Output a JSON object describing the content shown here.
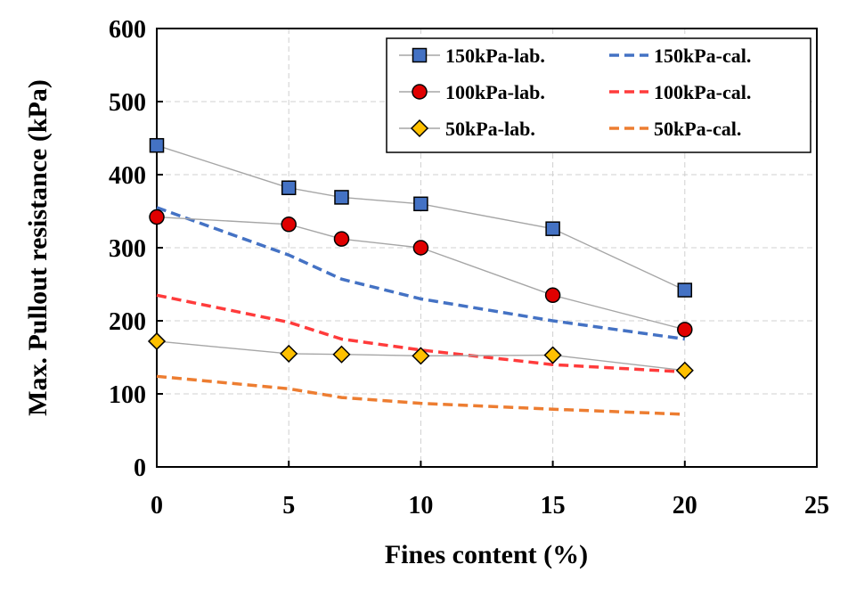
{
  "chart_data": {
    "type": "line",
    "title": "",
    "xlabel": "Fines content (%)",
    "ylabel": "Max. Pullout resistance (kPa)",
    "xlim": [
      0,
      25
    ],
    "ylim": [
      0,
      600
    ],
    "xticks": [
      0,
      5,
      10,
      15,
      20,
      25
    ],
    "yticks": [
      0,
      100,
      200,
      300,
      400,
      500,
      600
    ],
    "grid": true,
    "legend_position": "top-right",
    "series": [
      {
        "name": "150kPa-lab.",
        "kind": "lab",
        "marker": "square",
        "color": "#4472C4",
        "x": [
          0,
          5,
          7,
          10,
          15,
          20
        ],
        "values": [
          440,
          382,
          369,
          360,
          326,
          242
        ]
      },
      {
        "name": "100kPa-lab.",
        "kind": "lab",
        "marker": "circle",
        "color": "#E00000",
        "x": [
          0,
          5,
          7,
          10,
          15,
          20
        ],
        "values": [
          342,
          332,
          312,
          300,
          235,
          188
        ]
      },
      {
        "name": "50kPa-lab.",
        "kind": "lab",
        "marker": "diamond",
        "color": "#FFC000",
        "x": [
          0,
          5,
          7,
          10,
          15,
          20
        ],
        "values": [
          172,
          155,
          154,
          152,
          153,
          132
        ]
      },
      {
        "name": "150kPa-cal.",
        "kind": "cal",
        "color": "#4472C4",
        "x": [
          0,
          5,
          7,
          10,
          15,
          20
        ],
        "values": [
          355,
          290,
          257,
          230,
          200,
          175
        ]
      },
      {
        "name": "100kPa-cal.",
        "kind": "cal",
        "color": "#FF3B3B",
        "x": [
          0,
          5,
          7,
          10,
          15,
          20
        ],
        "values": [
          235,
          198,
          175,
          160,
          140,
          130
        ]
      },
      {
        "name": "50kPa-cal.",
        "kind": "cal",
        "color": "#ED7D31",
        "x": [
          0,
          5,
          7,
          10,
          15,
          20
        ],
        "values": [
          124,
          107,
          95,
          87,
          79,
          72
        ]
      }
    ]
  }
}
